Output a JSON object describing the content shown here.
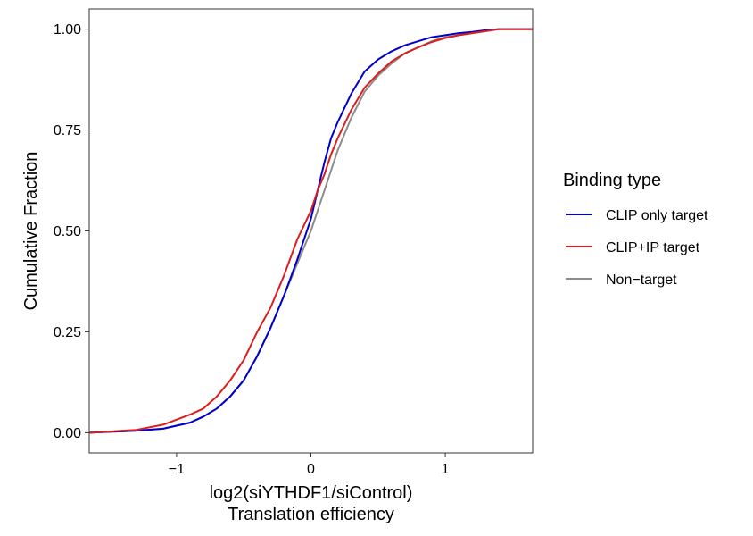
{
  "chart_data": {
    "type": "line",
    "title": "",
    "xlabel_line1": "log2(siYTHDF1/siControl)",
    "xlabel_line2": "Translation efficiency",
    "ylabel": "Cumulative Fraction",
    "xlim": [
      -1.65,
      1.65
    ],
    "ylim": [
      -0.05,
      1.05
    ],
    "x_ticks": [
      -1,
      0,
      1
    ],
    "x_tick_labels": [
      "−1",
      "0",
      "1"
    ],
    "y_ticks": [
      0,
      0.25,
      0.5,
      0.75,
      1
    ],
    "y_tick_labels": [
      "0.00",
      "0.25",
      "0.50",
      "0.75",
      "1.00"
    ],
    "grid": false,
    "legend_position": "right",
    "legend_title": "Binding type",
    "series": [
      {
        "name": "Non-target",
        "label": "Non−target",
        "color": "#8c8c8c",
        "x": [
          -1.65,
          -1.3,
          -1.1,
          -0.9,
          -0.8,
          -0.7,
          -0.6,
          -0.5,
          -0.4,
          -0.3,
          -0.2,
          -0.1,
          0.0,
          0.05,
          0.1,
          0.15,
          0.2,
          0.3,
          0.4,
          0.5,
          0.6,
          0.7,
          0.8,
          0.9,
          1.0,
          1.1,
          1.2,
          1.3,
          1.4,
          1.65
        ],
        "y": [
          0.0,
          0.005,
          0.01,
          0.025,
          0.04,
          0.06,
          0.09,
          0.13,
          0.19,
          0.26,
          0.34,
          0.42,
          0.5,
          0.55,
          0.6,
          0.65,
          0.7,
          0.78,
          0.845,
          0.885,
          0.915,
          0.94,
          0.955,
          0.97,
          0.98,
          0.985,
          0.99,
          0.995,
          1.0,
          1.0
        ]
      },
      {
        "name": "CLIP only target",
        "label": "CLIP only target",
        "color": "#0000cc",
        "x": [
          -1.65,
          -1.3,
          -1.1,
          -0.9,
          -0.8,
          -0.7,
          -0.6,
          -0.5,
          -0.4,
          -0.3,
          -0.2,
          -0.1,
          0.0,
          0.05,
          0.1,
          0.15,
          0.2,
          0.3,
          0.4,
          0.5,
          0.6,
          0.7,
          0.8,
          0.9,
          1.0,
          1.1,
          1.2,
          1.3,
          1.4,
          1.65
        ],
        "y": [
          0.0,
          0.005,
          0.01,
          0.025,
          0.04,
          0.06,
          0.09,
          0.13,
          0.19,
          0.26,
          0.34,
          0.43,
          0.53,
          0.6,
          0.67,
          0.73,
          0.77,
          0.84,
          0.895,
          0.925,
          0.945,
          0.96,
          0.97,
          0.98,
          0.985,
          0.99,
          0.993,
          0.997,
          1.0,
          1.0
        ]
      },
      {
        "name": "CLIP+IP target",
        "label": "CLIP+IP target",
        "color": "#dd1c1c",
        "x": [
          -1.65,
          -1.3,
          -1.1,
          -0.9,
          -0.8,
          -0.7,
          -0.6,
          -0.5,
          -0.4,
          -0.3,
          -0.2,
          -0.1,
          0.0,
          0.05,
          0.1,
          0.15,
          0.2,
          0.3,
          0.4,
          0.5,
          0.6,
          0.7,
          0.8,
          0.9,
          1.0,
          1.1,
          1.2,
          1.3,
          1.4,
          1.65
        ],
        "y": [
          0.0,
          0.007,
          0.02,
          0.045,
          0.06,
          0.09,
          0.13,
          0.18,
          0.25,
          0.31,
          0.39,
          0.48,
          0.55,
          0.6,
          0.64,
          0.69,
          0.73,
          0.8,
          0.855,
          0.89,
          0.92,
          0.94,
          0.955,
          0.968,
          0.978,
          0.985,
          0.99,
          0.995,
          1.0,
          1.0
        ]
      }
    ]
  }
}
